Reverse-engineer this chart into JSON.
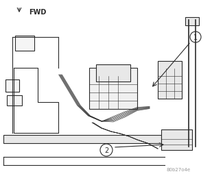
{
  "title": "",
  "bg_color": "#ffffff",
  "fig_width": 3.09,
  "fig_height": 2.55,
  "dpi": 100,
  "fwd_label": "FWD",
  "label1": "1",
  "label2": "2",
  "watermark": "80b27o4e",
  "watermark_color": "#999999",
  "line_color": "#2a2a2a",
  "line_width": 0.8,
  "fill_color": "#e8e8e8",
  "arrow_color": "#1a1a1a"
}
